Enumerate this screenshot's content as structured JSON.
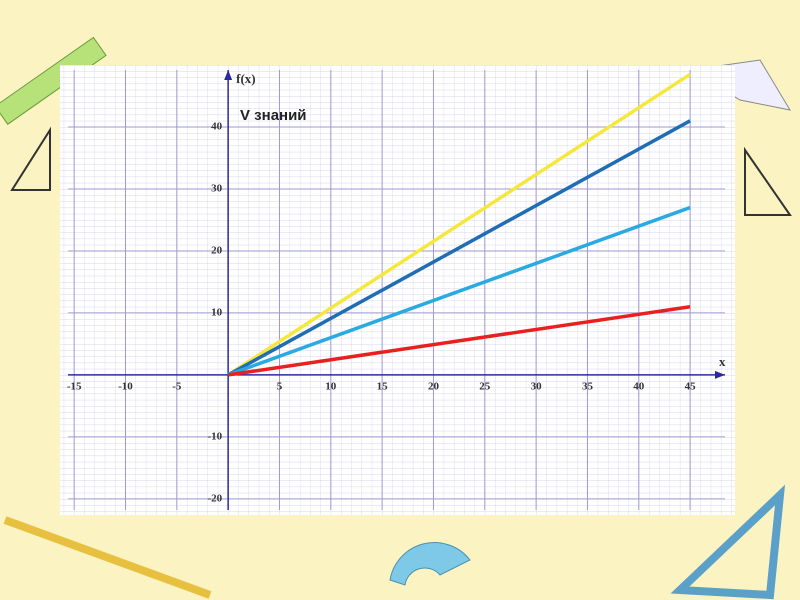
{
  "chart_data": {
    "type": "line",
    "annotation": "V знаний",
    "x_label": "x",
    "y_label": "f(x)",
    "x": [
      0,
      45
    ],
    "series": [
      {
        "color": "#f5e83a",
        "values": [
          0,
          48.5
        ]
      },
      {
        "color": "#1f6db5",
        "values": [
          0,
          41
        ]
      },
      {
        "color": "#29aae2",
        "values": [
          0,
          27
        ]
      },
      {
        "color": "#e8201e",
        "values": [
          0,
          11
        ]
      }
    ],
    "xlim": [
      -15.6,
      48.4
    ],
    "xticks": [
      -15,
      -10,
      -5,
      5,
      10,
      15,
      20,
      25,
      30,
      35,
      40,
      45
    ],
    "ylim": [
      -21.8,
      49.2
    ],
    "yticks": [
      -20,
      -10,
      10,
      20,
      30,
      40
    ],
    "grid": true
  }
}
